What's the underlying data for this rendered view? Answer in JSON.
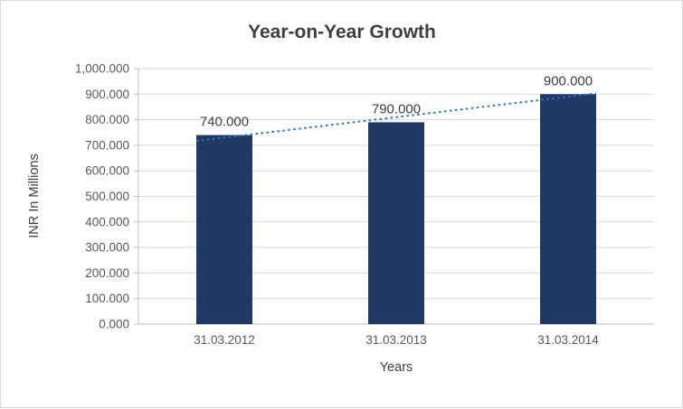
{
  "chart_data": {
    "type": "bar",
    "title": "Year-on-Year Growth",
    "xlabel": "Years",
    "ylabel": "INR In Millions",
    "categories": [
      "31.03.2012",
      "31.03.2013",
      "31.03.2014"
    ],
    "values": [
      740,
      790,
      900
    ],
    "data_labels": [
      "740.000",
      "790.000",
      "900.000"
    ],
    "ylim": [
      0,
      1000
    ],
    "y_ticks": [
      {
        "value": 0,
        "label": "0.000"
      },
      {
        "value": 100,
        "label": "100.000"
      },
      {
        "value": 200,
        "label": "200.000"
      },
      {
        "value": 300,
        "label": "300.000"
      },
      {
        "value": 400,
        "label": "400.000"
      },
      {
        "value": 500,
        "label": "500.000"
      },
      {
        "value": 600,
        "label": "600.000"
      },
      {
        "value": 700,
        "label": "700.000"
      },
      {
        "value": 800,
        "label": "800.000"
      },
      {
        "value": 900,
        "label": "900.000"
      },
      {
        "value": 1000,
        "label": "1,000.000"
      }
    ],
    "grid": true,
    "legend": "none",
    "trendline": {
      "type": "linear",
      "style": "dotted"
    },
    "colors": {
      "bar": "#1F3864",
      "trend": "#2E75B6",
      "grid": "#D9D9D9",
      "axis": "#BFBFBF",
      "tick_text": "#595959",
      "title_text": "#404040"
    }
  }
}
